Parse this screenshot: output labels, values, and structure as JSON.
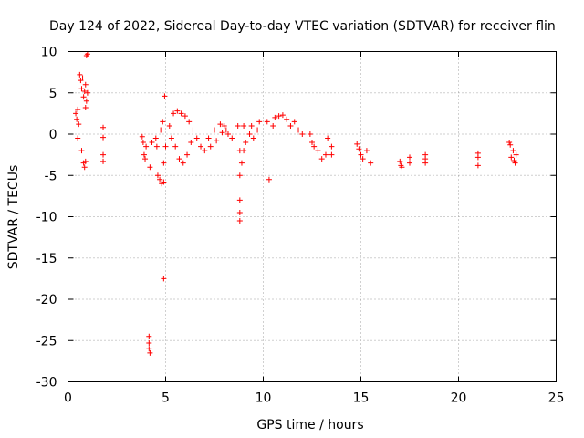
{
  "chart_data": {
    "type": "scatter",
    "title": "Day 124 of 2022, Sidereal Day-to-day VTEC variation (SDTVAR) for receiver flin",
    "xlabel": "GPS time / hours",
    "ylabel": "SDTVAR / TECUs",
    "xlim": [
      0,
      25
    ],
    "ylim": [
      -30,
      10
    ],
    "x_ticks": [
      0,
      5,
      10,
      15,
      20,
      25
    ],
    "y_ticks": [
      10,
      5,
      0,
      -5,
      -10,
      -15,
      -20,
      -25,
      -30
    ],
    "x_tick_labels": [
      "0",
      "5",
      "10",
      "15",
      "20",
      "25"
    ],
    "y_tick_labels": [
      "10",
      "5",
      "0",
      "-5",
      "-10",
      "-15",
      "-20",
      "-25",
      "-30"
    ],
    "grid": true,
    "marker": "+",
    "color": "#ff0000",
    "series": [
      {
        "name": "SDTVAR",
        "points": [
          [
            0.4,
            2.5
          ],
          [
            0.45,
            1.8
          ],
          [
            0.5,
            -0.5
          ],
          [
            0.5,
            3.0
          ],
          [
            0.55,
            1.2
          ],
          [
            0.6,
            7.2
          ],
          [
            0.65,
            6.5
          ],
          [
            0.7,
            5.5
          ],
          [
            0.7,
            -2.0
          ],
          [
            0.75,
            6.8
          ],
          [
            0.8,
            4.5
          ],
          [
            0.85,
            5.2
          ],
          [
            0.9,
            3.2
          ],
          [
            0.9,
            6.0
          ],
          [
            0.95,
            4.0
          ],
          [
            1.0,
            5.0
          ],
          [
            0.8,
            -3.5
          ],
          [
            0.85,
            -4.0
          ],
          [
            0.9,
            -3.3
          ],
          [
            0.95,
            9.5
          ],
          [
            1.0,
            9.7
          ],
          [
            1.8,
            0.8
          ],
          [
            1.8,
            -0.4
          ],
          [
            1.8,
            -2.5
          ],
          [
            1.8,
            -3.3
          ],
          [
            3.8,
            -0.3
          ],
          [
            3.85,
            -1.0
          ],
          [
            3.9,
            -2.5
          ],
          [
            3.95,
            -3.0
          ],
          [
            4.0,
            -1.5
          ],
          [
            4.3,
            -1.0
          ],
          [
            4.2,
            -4.0
          ],
          [
            4.15,
            -24.5
          ],
          [
            4.15,
            -25.3
          ],
          [
            4.15,
            -26.0
          ],
          [
            4.2,
            -26.5
          ],
          [
            4.5,
            -0.5
          ],
          [
            4.55,
            -1.5
          ],
          [
            4.6,
            -5.0
          ],
          [
            4.7,
            -5.5
          ],
          [
            4.8,
            -6.0
          ],
          [
            4.9,
            -5.8
          ],
          [
            4.75,
            0.5
          ],
          [
            4.85,
            1.5
          ],
          [
            4.95,
            4.6
          ],
          [
            4.9,
            -17.5
          ],
          [
            4.9,
            -3.5
          ],
          [
            5.0,
            -1.5
          ],
          [
            5.2,
            1.0
          ],
          [
            5.4,
            2.5
          ],
          [
            5.6,
            2.8
          ],
          [
            5.8,
            2.5
          ],
          [
            6.0,
            2.2
          ],
          [
            6.2,
            1.5
          ],
          [
            6.4,
            0.5
          ],
          [
            6.6,
            -0.5
          ],
          [
            6.8,
            -1.5
          ],
          [
            7.0,
            -2.0
          ],
          [
            5.3,
            -0.5
          ],
          [
            5.5,
            -1.5
          ],
          [
            5.7,
            -3.0
          ],
          [
            5.9,
            -3.5
          ],
          [
            6.1,
            -2.5
          ],
          [
            6.3,
            -1.0
          ],
          [
            7.2,
            -0.5
          ],
          [
            7.5,
            0.5
          ],
          [
            7.8,
            1.2
          ],
          [
            8.0,
            1.0
          ],
          [
            8.2,
            0.0
          ],
          [
            8.4,
            -0.5
          ],
          [
            7.3,
            -1.5
          ],
          [
            7.6,
            -0.8
          ],
          [
            7.9,
            0.2
          ],
          [
            8.1,
            0.5
          ],
          [
            8.7,
            1.0
          ],
          [
            8.8,
            -2.0
          ],
          [
            8.8,
            -5.0
          ],
          [
            8.8,
            -8.0
          ],
          [
            8.8,
            -9.5
          ],
          [
            8.8,
            -10.5
          ],
          [
            8.9,
            -3.5
          ],
          [
            9.0,
            -2.0
          ],
          [
            9.1,
            -1.0
          ],
          [
            9.3,
            0.0
          ],
          [
            9.5,
            -0.5
          ],
          [
            9.7,
            0.5
          ],
          [
            9.0,
            1.0
          ],
          [
            9.4,
            1.0
          ],
          [
            9.8,
            1.5
          ],
          [
            10.2,
            1.5
          ],
          [
            10.5,
            1.0
          ],
          [
            10.3,
            -5.5
          ],
          [
            10.6,
            2.0
          ],
          [
            10.8,
            2.2
          ],
          [
            11.0,
            2.3
          ],
          [
            11.2,
            1.8
          ],
          [
            11.4,
            1.0
          ],
          [
            11.6,
            1.5
          ],
          [
            11.8,
            0.5
          ],
          [
            12.0,
            0.0
          ],
          [
            12.4,
            0.0
          ],
          [
            12.5,
            -1.0
          ],
          [
            12.6,
            -1.5
          ],
          [
            12.8,
            -2.0
          ],
          [
            13.0,
            -3.0
          ],
          [
            13.2,
            -2.5
          ],
          [
            13.3,
            -0.5
          ],
          [
            13.5,
            -1.5
          ],
          [
            13.5,
            -2.5
          ],
          [
            14.8,
            -1.2
          ],
          [
            14.9,
            -1.8
          ],
          [
            15.0,
            -2.5
          ],
          [
            15.1,
            -3.0
          ],
          [
            15.3,
            -2.0
          ],
          [
            15.5,
            -3.5
          ],
          [
            17.0,
            -3.3
          ],
          [
            17.05,
            -3.8
          ],
          [
            17.1,
            -4.0
          ],
          [
            17.5,
            -2.8
          ],
          [
            17.5,
            -3.5
          ],
          [
            18.3,
            -2.5
          ],
          [
            18.3,
            -3.0
          ],
          [
            18.3,
            -3.5
          ],
          [
            21.0,
            -2.3
          ],
          [
            21.0,
            -2.8
          ],
          [
            21.0,
            -3.8
          ],
          [
            22.6,
            -1.0
          ],
          [
            22.65,
            -1.3
          ],
          [
            22.7,
            -2.8
          ],
          [
            22.8,
            -2.0
          ],
          [
            22.85,
            -3.2
          ],
          [
            22.9,
            -3.5
          ],
          [
            22.95,
            -2.5
          ]
        ]
      }
    ]
  }
}
